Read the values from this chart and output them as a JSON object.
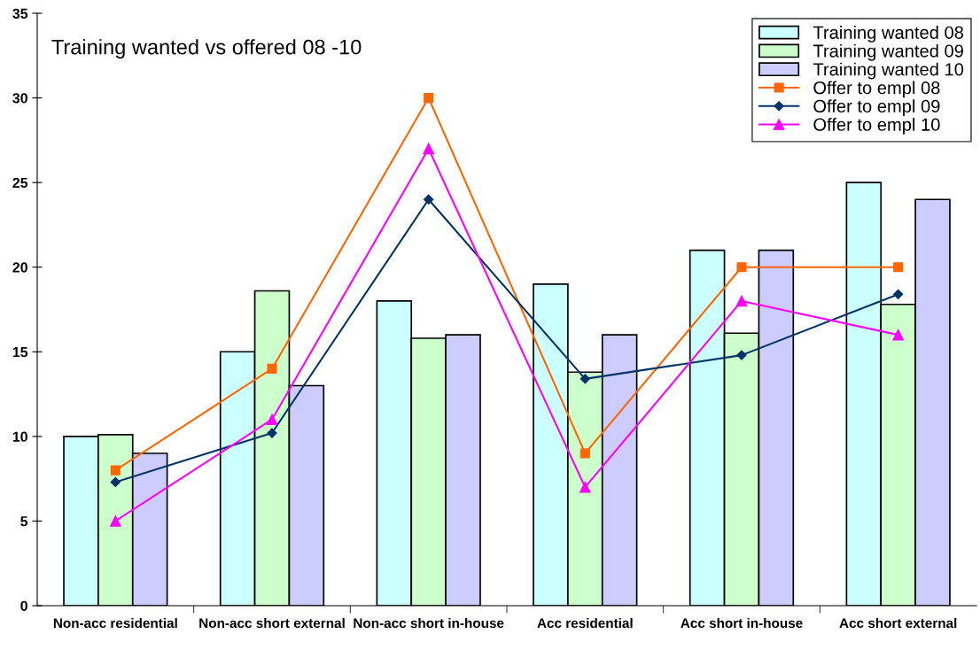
{
  "chart_data": {
    "type": "bar",
    "title": "Training wanted vs offered 08 -10",
    "categories": [
      "Non-acc residential",
      "Non-acc short external",
      "Non-acc short in-house",
      "Acc residential",
      "Acc short in-house",
      "Acc short external"
    ],
    "series": [
      {
        "name": "Training wanted 08",
        "color": "#ccffff",
        "values": [
          10,
          15,
          18,
          19,
          21,
          25
        ]
      },
      {
        "name": "Training wanted 09",
        "color": "#ccffcc",
        "values": [
          10.1,
          18.6,
          15.8,
          13.8,
          16.1,
          17.8
        ]
      },
      {
        "name": "Training wanted 10",
        "color": "#ccccff",
        "values": [
          9,
          13,
          16,
          16,
          21,
          24
        ]
      },
      {
        "name": "Offer to empl 08",
        "type": "line",
        "color": "#ff6600",
        "marker": "square",
        "values": [
          8,
          14,
          30,
          9,
          20,
          20
        ]
      },
      {
        "name": "Offer to empl 09",
        "type": "line",
        "color": "#003366",
        "marker": "diamond",
        "values": [
          7.3,
          10.2,
          24,
          13.4,
          14.8,
          18.4
        ]
      },
      {
        "name": "Offer to empl 10",
        "type": "line",
        "color": "#ff00ff",
        "marker": "triangle",
        "values": [
          5,
          11,
          27,
          7,
          18,
          16
        ]
      }
    ],
    "ylim": [
      0,
      35
    ],
    "yticks": [
      0,
      5,
      10,
      15,
      20,
      25,
      30,
      35
    ],
    "grid": false,
    "legend": "top right"
  }
}
